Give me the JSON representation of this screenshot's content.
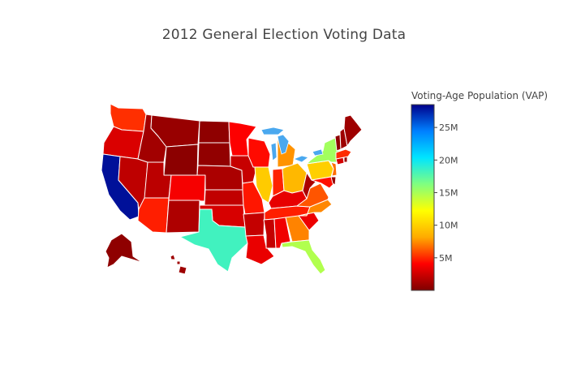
{
  "title": "2012 General Election Voting Data",
  "colorbar": {
    "title": "Voting-Age Population (VAP)",
    "ticks": [
      "5M",
      "10M",
      "15M",
      "20M",
      "25M"
    ],
    "tick_values": [
      5000000,
      10000000,
      15000000,
      20000000,
      25000000
    ],
    "range": [
      0,
      28500000
    ],
    "colorscale": "Jet (reversed)"
  },
  "chart_data": {
    "type": "choropleth",
    "title": "2012 General Election Voting Data",
    "scope": "usa",
    "z_label": "Voting-Age Population (VAP)",
    "zmin": 0,
    "zmax": 28500000,
    "colorscale": [
      "#7f0000",
      "#ff0000",
      "#ffaa00",
      "#ffff00",
      "#80ff80",
      "#00e5ff",
      "#0080ff",
      "#00008b"
    ],
    "lakes": {
      "color": "#4aa8ef"
    },
    "states": [
      {
        "code": "CA",
        "value": 28000000
      },
      {
        "code": "TX",
        "value": 18300000
      },
      {
        "code": "FL",
        "value": 14700000
      },
      {
        "code": "NY",
        "value": 15200000
      },
      {
        "code": "IL",
        "value": 9700000
      },
      {
        "code": "PA",
        "value": 9900000
      },
      {
        "code": "OH",
        "value": 8800000
      },
      {
        "code": "MI",
        "value": 7600000
      },
      {
        "code": "GA",
        "value": 7200000
      },
      {
        "code": "NC",
        "value": 7300000
      },
      {
        "code": "NJ",
        "value": 6700000
      },
      {
        "code": "VA",
        "value": 6100000
      },
      {
        "code": "WA",
        "value": 5200000
      },
      {
        "code": "AZ",
        "value": 4800000
      },
      {
        "code": "MA",
        "value": 5100000
      },
      {
        "code": "IN",
        "value": 4900000
      },
      {
        "code": "TN",
        "value": 4800000
      },
      {
        "code": "MO",
        "value": 4600000
      },
      {
        "code": "MD",
        "value": 4400000
      },
      {
        "code": "WI",
        "value": 4300000
      },
      {
        "code": "MN",
        "value": 4000000
      },
      {
        "code": "CO",
        "value": 3800000
      },
      {
        "code": "AL",
        "value": 3600000
      },
      {
        "code": "SC",
        "value": 3500000
      },
      {
        "code": "LA",
        "value": 3400000
      },
      {
        "code": "KY",
        "value": 3300000
      },
      {
        "code": "OR",
        "value": 2900000
      },
      {
        "code": "OK",
        "value": 2800000
      },
      {
        "code": "CT",
        "value": 2700000
      },
      {
        "code": "IA",
        "value": 2300000
      },
      {
        "code": "MS",
        "value": 2200000
      },
      {
        "code": "AR",
        "value": 2200000
      },
      {
        "code": "KS",
        "value": 2100000
      },
      {
        "code": "UT",
        "value": 1900000
      },
      {
        "code": "NV",
        "value": 2000000
      },
      {
        "code": "NM",
        "value": 1500000
      },
      {
        "code": "WV",
        "value": 1400000
      },
      {
        "code": "NE",
        "value": 1400000
      },
      {
        "code": "ID",
        "value": 1100000
      },
      {
        "code": "HI",
        "value": 1000000
      },
      {
        "code": "ME",
        "value": 1000000
      },
      {
        "code": "NH",
        "value": 1000000
      },
      {
        "code": "RI",
        "value": 800000
      },
      {
        "code": "MT",
        "value": 800000
      },
      {
        "code": "DE",
        "value": 700000
      },
      {
        "code": "SD",
        "value": 600000
      },
      {
        "code": "AK",
        "value": 500000
      },
      {
        "code": "ND",
        "value": 500000
      },
      {
        "code": "VT",
        "value": 500000
      },
      {
        "code": "WY",
        "value": 400000
      },
      {
        "code": "DC",
        "value": 500000
      }
    ]
  }
}
